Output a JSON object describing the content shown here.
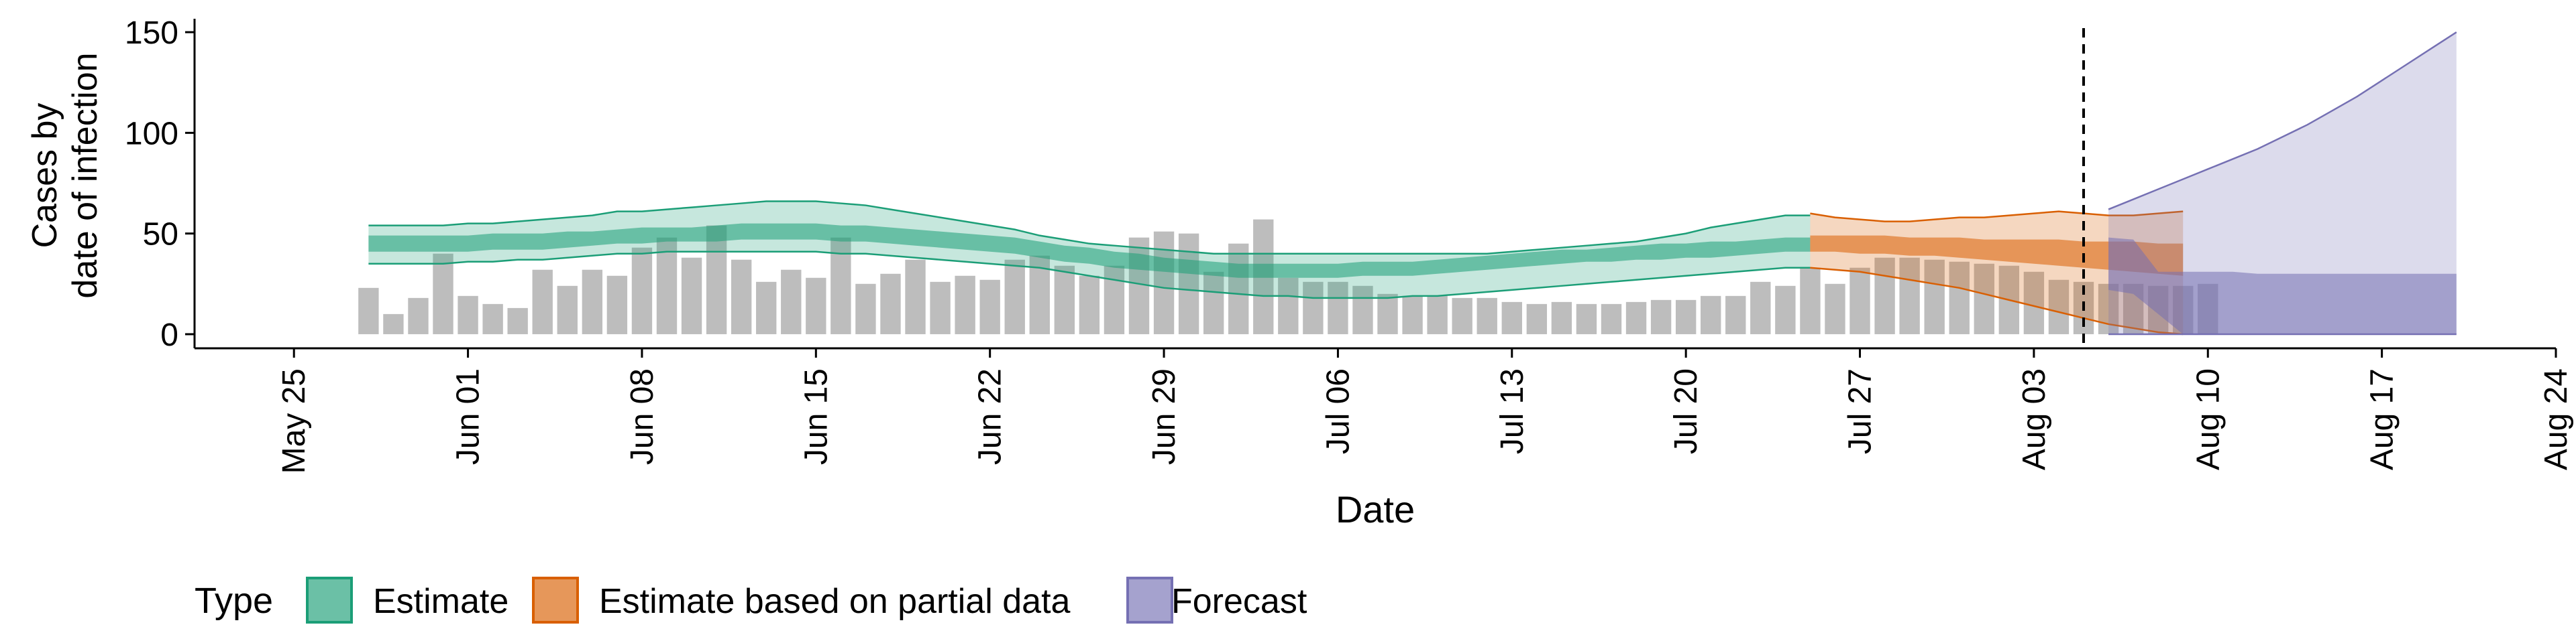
{
  "chart_data": {
    "type": "bar",
    "xlabel": "Date",
    "ylabel_lines": [
      "Cases by",
      "date of infection"
    ],
    "yticks": [
      0,
      50,
      100,
      150
    ],
    "ylim": [
      -7,
      156
    ],
    "xlim": [
      "2020-05-21",
      "2020-08-24"
    ],
    "xticks": [
      "May 25",
      "Jun 01",
      "Jun 08",
      "Jun 15",
      "Jun 22",
      "Jun 29",
      "Jul 06",
      "Jul 13",
      "Jul 20",
      "Jul 27",
      "Aug 03",
      "Aug 10",
      "Aug 17",
      "Aug 24"
    ],
    "bars": {
      "start": "2020-05-28",
      "values": [
        23,
        10,
        18,
        40,
        19,
        15,
        13,
        32,
        24,
        32,
        29,
        43,
        48,
        38,
        54,
        37,
        26,
        32,
        28,
        48,
        25,
        30,
        37,
        26,
        29,
        27,
        37,
        39,
        34,
        29,
        34,
        48,
        51,
        50,
        31,
        45,
        57,
        28,
        26,
        26,
        24,
        20,
        19,
        19,
        18,
        18,
        16,
        15,
        16,
        15,
        15,
        16,
        17,
        17,
        19,
        19,
        26,
        24,
        33,
        25,
        33,
        38,
        38,
        37,
        36,
        35,
        34,
        31,
        27,
        26,
        25,
        25,
        24,
        24,
        25
      ]
    },
    "estimate": {
      "start": "2020-05-28",
      "outer_lower": [
        35,
        35,
        35,
        35,
        36,
        36,
        37,
        37,
        38,
        39,
        40,
        40,
        41,
        41,
        41,
        41,
        41,
        41,
        41,
        40,
        40,
        39,
        38,
        37,
        36,
        35,
        34,
        33,
        31,
        29,
        27,
        25,
        23,
        22,
        21,
        20,
        19,
        19,
        18,
        18,
        18,
        18,
        19,
        19,
        20,
        21,
        22,
        23,
        24,
        25,
        26,
        27,
        28,
        29,
        30,
        31,
        32,
        33,
        33
      ],
      "inner_lower": [
        41,
        41,
        41,
        41,
        41,
        42,
        42,
        42,
        43,
        44,
        45,
        45,
        46,
        46,
        46,
        47,
        47,
        47,
        47,
        46,
        46,
        45,
        44,
        43,
        42,
        41,
        40,
        38,
        36,
        35,
        33,
        32,
        31,
        30,
        29,
        28,
        28,
        28,
        28,
        28,
        29,
        29,
        29,
        30,
        31,
        32,
        33,
        34,
        35,
        36,
        36,
        37,
        37,
        38,
        38,
        39,
        40,
        41,
        41
      ],
      "inner_upper": [
        49,
        49,
        49,
        49,
        49,
        50,
        50,
        50,
        51,
        51,
        52,
        53,
        53,
        53,
        54,
        55,
        55,
        55,
        55,
        54,
        54,
        53,
        52,
        51,
        50,
        49,
        48,
        46,
        44,
        43,
        41,
        40,
        38,
        37,
        36,
        35,
        35,
        35,
        35,
        35,
        36,
        36,
        36,
        37,
        38,
        39,
        40,
        41,
        42,
        42,
        43,
        44,
        45,
        45,
        46,
        46,
        47,
        48,
        48
      ],
      "outer_upper": [
        54,
        54,
        54,
        54,
        55,
        55,
        56,
        57,
        58,
        59,
        61,
        61,
        62,
        63,
        64,
        65,
        66,
        66,
        66,
        65,
        64,
        62,
        60,
        58,
        56,
        54,
        52,
        49,
        47,
        45,
        44,
        43,
        42,
        41,
        40,
        40,
        40,
        40,
        40,
        40,
        40,
        40,
        40,
        40,
        40,
        40,
        41,
        42,
        43,
        44,
        45,
        46,
        48,
        50,
        53,
        55,
        57,
        59,
        59
      ]
    },
    "partial": {
      "start": "2020-07-25",
      "outer_lower": [
        33,
        32,
        31,
        29,
        27,
        25,
        23,
        20,
        17,
        14,
        11,
        8,
        5,
        3,
        1,
        0
      ],
      "inner_lower": [
        41,
        41,
        40,
        40,
        39,
        39,
        38,
        37,
        36,
        35,
        34,
        33,
        32,
        31,
        30,
        29
      ],
      "inner_upper": [
        49,
        49,
        49,
        49,
        48,
        48,
        48,
        47,
        47,
        47,
        47,
        46,
        46,
        46,
        45,
        45
      ],
      "outer_upper": [
        60,
        58,
        57,
        56,
        56,
        57,
        58,
        58,
        59,
        60,
        61,
        60,
        59,
        59,
        60,
        61
      ]
    },
    "forecast": {
      "start": "2020-08-06",
      "outer_lower": [
        0,
        0,
        0,
        0,
        0,
        0,
        0,
        0,
        0,
        0,
        0,
        0,
        0,
        0,
        0
      ],
      "inner_lower": [
        22,
        20,
        10,
        0,
        0,
        0,
        0,
        0,
        0,
        0,
        0,
        0,
        0,
        0,
        0
      ],
      "inner_upper": [
        48,
        47,
        31,
        31,
        31,
        31,
        30,
        30,
        30,
        30,
        30,
        30,
        30,
        30,
        30
      ],
      "outer_upper": [
        62,
        67,
        72,
        77,
        82,
        87,
        92,
        98,
        104,
        111,
        118,
        126,
        134,
        142,
        150
      ]
    },
    "vline_date": "2020-08-05",
    "colors": {
      "bars": "#bdbdbd",
      "estimate": "#1b9e77",
      "partial": "#d95f02",
      "forecast": "#7570b3"
    },
    "legend": {
      "title": "Type",
      "items": [
        {
          "label": "Estimate",
          "key": "estimate"
        },
        {
          "label": "Estimate based on partial data",
          "key": "partial"
        },
        {
          "label": "Forecast",
          "key": "forecast"
        }
      ]
    }
  }
}
